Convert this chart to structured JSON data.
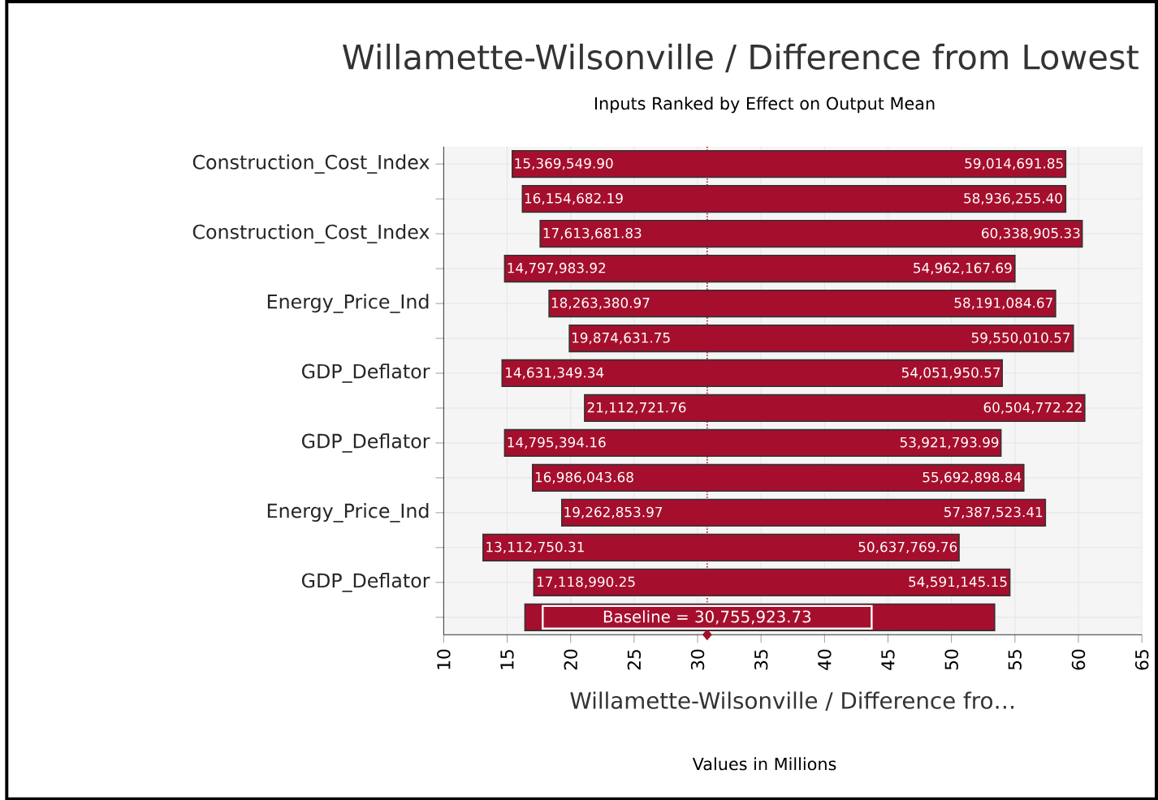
{
  "chart_data": {
    "type": "bar",
    "orientation": "horizontal",
    "title": "Willamette-Wilsonville / Difference from Lowest",
    "subtitle": "Inputs Ranked by Effect on Output  Mean",
    "xlabel": "Willamette-Wilsonville / Difference fro…",
    "categories": [
      "Construction_Cost_Index",
      null,
      "Construction_Cost_Index",
      null,
      "Energy_Price_Ind",
      null,
      "GDP_Deflator",
      null,
      "GDP_Deflator",
      null,
      "Energy_Price_Ind",
      null,
      "GDP_Deflator",
      null
    ],
    "base": [
      15.4,
      16.2,
      17.6,
      14.8,
      18.3,
      19.9,
      14.6,
      21.1,
      14.8,
      17.0,
      19.3,
      13.1,
      17.1,
      16.4
    ],
    "values": [
      43.6,
      42.8,
      42.7,
      40.2,
      39.9,
      39.7,
      39.4,
      39.4,
      39.1,
      38.7,
      38.1,
      37.5,
      37.5,
      37.0
    ],
    "color": "#a50f2d",
    "xlim": [
      10,
      65
    ],
    "xticks": [
      10,
      15,
      20,
      25,
      30,
      35,
      40,
      45,
      50,
      55,
      60,
      65
    ],
    "grid": true,
    "ref_lines": [
      {
        "axis": "x",
        "value": 30.75592373,
        "label": "Baseline = 30,755,923.73",
        "color": "#a50f2d",
        "line_style": "dotted"
      }
    ],
    "annotations": [
      "Values in Millions",
      {
        "text": "15,369,549.90",
        "x": 15.3695499
      },
      {
        "text": "59,014,691.85",
        "x": 59.01469185
      },
      {
        "text": "16,154,682.19",
        "x": 16.15468219
      },
      {
        "text": "58,936,255.40",
        "x": 58.9362554
      },
      {
        "text": "17,613,681.83",
        "x": 17.61368183
      },
      {
        "text": "60,338,905.33",
        "x": 60.33890533
      },
      {
        "text": "14,797,983.92",
        "x": 14.79798392
      },
      {
        "text": "54,962,167.69",
        "x": 54.96216769
      },
      {
        "text": "18,263,380.97",
        "x": 18.26338097
      },
      {
        "text": "58,191,084.67",
        "x": 58.19108467
      },
      {
        "text": "19,874,631.75",
        "x": 19.87463175
      },
      {
        "text": "59,550,010.57",
        "x": 59.55001057
      },
      {
        "text": "14,631,349.34",
        "x": 14.63134934
      },
      {
        "text": "54,051,950.57",
        "x": 54.05195057
      },
      {
        "text": "21,112,721.76",
        "x": 21.11272176
      },
      {
        "text": "60,504,772.22",
        "x": 60.50477222
      },
      {
        "text": "14,795,394.16",
        "x": 14.79539416
      },
      {
        "text": "53,921,793.99",
        "x": 53.92179399
      },
      {
        "text": "16,986,043.68",
        "x": 16.98604368
      },
      {
        "text": "55,692,898.84",
        "x": 55.69289884
      },
      {
        "text": "19,262,853.97",
        "x": 19.26285397
      },
      {
        "text": "57,387,523.41",
        "x": 57.38752341
      },
      {
        "text": "13,112,750.31",
        "x": 13.11275031
      },
      {
        "text": "50,637,769.76",
        "x": 50.63776976
      },
      {
        "text": "17,118,990.25",
        "x": 17.11899025
      },
      {
        "text": "54,591,145.15",
        "x": 54.59114515
      }
    ]
  }
}
